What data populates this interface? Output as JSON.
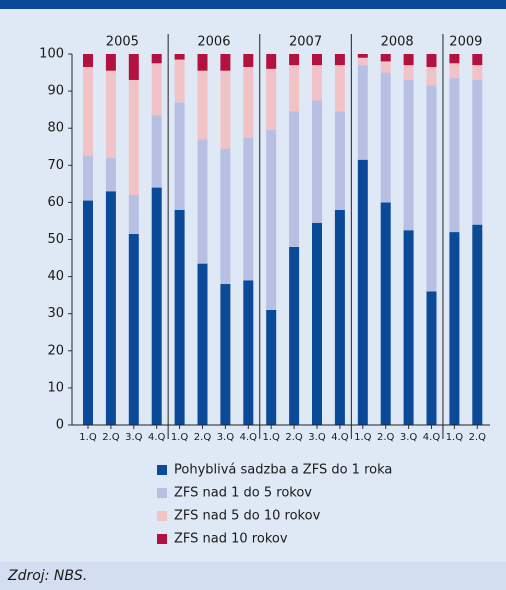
{
  "chart_data": {
    "type": "bar",
    "stacked": true,
    "groups": [
      {
        "label": "2005",
        "categories": [
          "1.Q",
          "2.Q",
          "3.Q",
          "4.Q"
        ]
      },
      {
        "label": "2006",
        "categories": [
          "1.Q",
          "2.Q",
          "3.Q",
          "4.Q"
        ]
      },
      {
        "label": "2007",
        "categories": [
          "1.Q",
          "2.Q",
          "3.Q",
          "4.Q"
        ]
      },
      {
        "label": "2008",
        "categories": [
          "1.Q",
          "2.Q",
          "3.Q",
          "4.Q"
        ]
      },
      {
        "label": "2009",
        "categories": [
          "1.Q",
          "2.Q"
        ]
      }
    ],
    "series": [
      {
        "name": "Pohyblivá sadzba a ZFS do 1 roka",
        "color": "#0b4a98",
        "values": [
          60.5,
          63,
          51.5,
          64,
          58,
          43.5,
          38,
          39,
          31,
          48,
          54.5,
          58,
          71.5,
          60,
          52.5,
          36,
          52,
          54
        ]
      },
      {
        "name": "ZFS nad 1 do 5 rokov",
        "color": "#b7c0e3",
        "values": [
          12,
          9,
          10.5,
          19.5,
          29,
          33.5,
          36.5,
          38.5,
          48.5,
          36.5,
          33,
          26.5,
          25.5,
          35,
          40.5,
          55.5,
          41.5,
          39
        ]
      },
      {
        "name": "ZFS nad 5 do 10 rokov",
        "color": "#f1c3c6",
        "values": [
          24,
          23.5,
          31,
          14,
          11.5,
          18.5,
          21,
          19,
          16.5,
          12.5,
          9.5,
          12.5,
          2,
          3,
          4,
          5,
          4,
          4
        ]
      },
      {
        "name": "ZFS nad 10 rokov",
        "color": "#b3123f",
        "values": [
          3.5,
          4.5,
          7,
          2.5,
          1.5,
          4.5,
          4.5,
          3.5,
          4,
          3,
          3,
          3,
          1,
          2,
          3,
          3.5,
          2.5,
          3
        ]
      }
    ],
    "ylim": [
      0,
      100
    ],
    "yticks": [
      0,
      10,
      20,
      30,
      40,
      50,
      60,
      70,
      80,
      90,
      100
    ],
    "source": "Zdroj: NBS."
  }
}
